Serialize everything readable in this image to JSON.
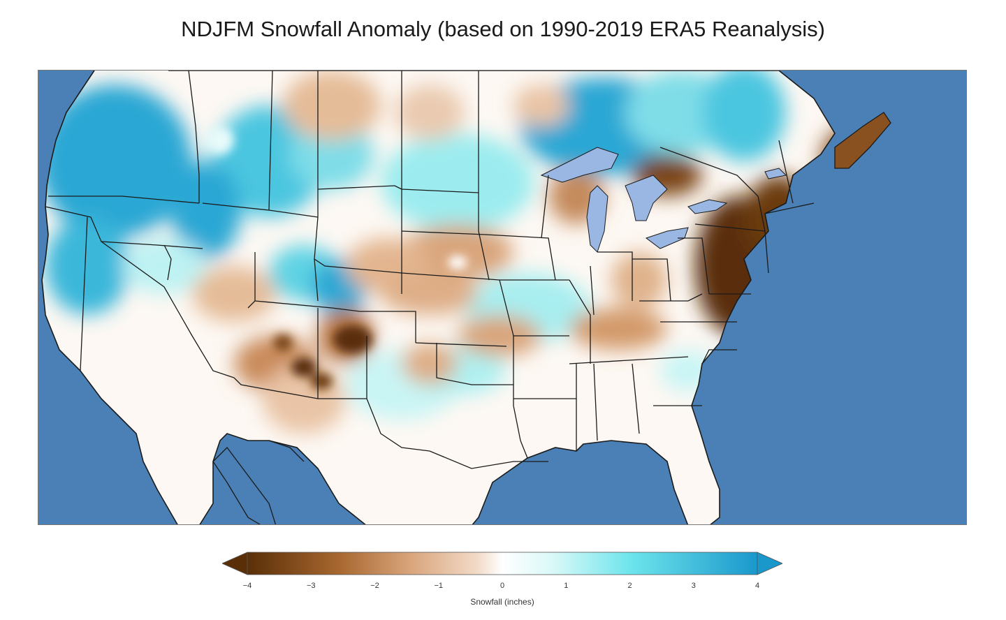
{
  "title": "NDJFM Snowfall Anomaly (based on 1990-2019 ERA5 Reanalysis)",
  "map": {
    "region": "Contiguous United States",
    "ocean_color": "#4a80b6",
    "lake_color": "#9ab7e3",
    "border_color": "#1a1a1a"
  },
  "colorbar": {
    "label": "Snowfall (inches)",
    "ticks": [
      "−4",
      "−3",
      "−2",
      "−1",
      "0",
      "1",
      "2",
      "3",
      "4"
    ],
    "min": -4,
    "max": 4,
    "extend": "both",
    "colors": {
      "min": "#5a2f08",
      "mid_low": "#d9a57c",
      "zero": "#ffffff",
      "mid_high": "#6ee5ec",
      "max": "#1a98cc"
    }
  }
}
